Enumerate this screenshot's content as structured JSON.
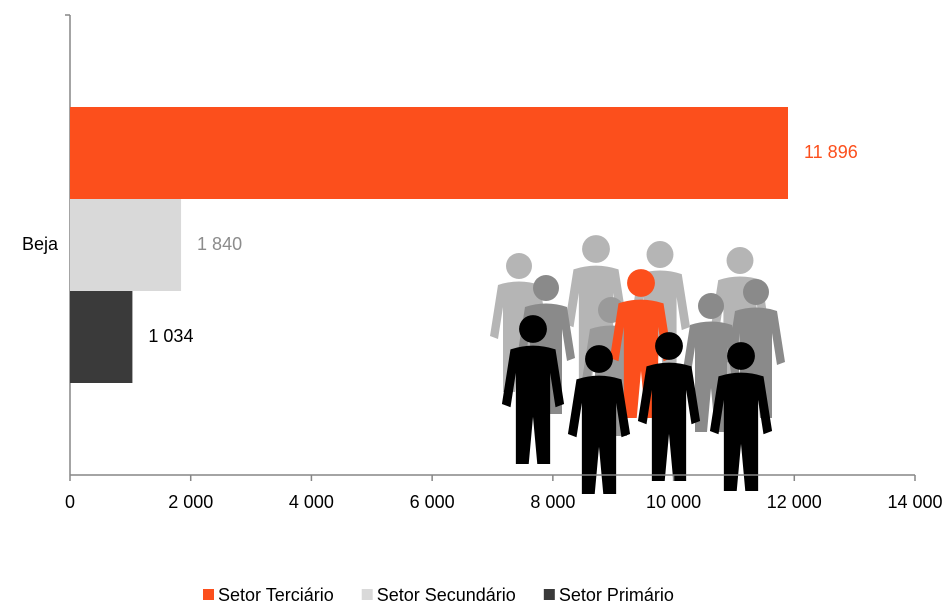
{
  "chart_data": {
    "type": "bar",
    "orientation": "horizontal",
    "categories": [
      "Beja"
    ],
    "series": [
      {
        "name": "Setor Terciário",
        "color": "#fc4f1c",
        "values": [
          11896
        ],
        "value_labels": [
          "11 896"
        ]
      },
      {
        "name": "Setor Secundário",
        "color": "#d9d9d9",
        "values": [
          1840
        ],
        "value_labels": [
          "1 840"
        ]
      },
      {
        "name": "Setor Primário",
        "color": "#3a3a3a",
        "values": [
          1034
        ],
        "value_labels": [
          "1 034"
        ]
      }
    ],
    "xlim": [
      0,
      14000
    ],
    "xticks": [
      0,
      {
        "value": 2000,
        "label": "2 000"
      },
      {
        "value": 4000,
        "label": "4 000"
      },
      {
        "value": 6000,
        "label": "6 000"
      },
      {
        "value": 8000,
        "label": "8 000"
      },
      {
        "value": 10000,
        "label": "10 000"
      },
      {
        "value": 12000,
        "label": "12 000"
      },
      {
        "value": 14000,
        "label": "14 000"
      }
    ],
    "grid": false,
    "legend": "bottom"
  }
}
